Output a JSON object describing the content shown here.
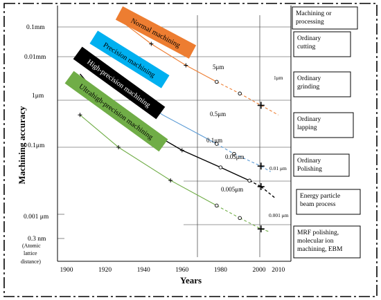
{
  "chart_data": {
    "type": "line",
    "xlabel": "Years",
    "ylabel": "Machining accuracy",
    "x_ticks": [
      "1900",
      "1920",
      "1940",
      "1960",
      "1980",
      "2000",
      "2010"
    ],
    "y_ticks": [
      "0.1mm",
      "0.01mm",
      "1μm",
      "0.1μm",
      "0.001 μm",
      "0.3 nm",
      "(Atomic",
      "lattice",
      "distance)"
    ],
    "series": [
      {
        "name": "Normal machining",
        "color": "#ed7d31",
        "solid_until": 1978,
        "points": [
          [
            1930,
            0.12
          ],
          [
            1944,
            0.042
          ],
          [
            1962,
            0.014
          ],
          [
            1978,
            0.006
          ],
          [
            1990,
            0.0033
          ],
          [
            2001,
            0.0018
          ],
          [
            2010,
            0.0011
          ]
        ]
      },
      {
        "name": "Precision machining",
        "color": "#5b9bd5",
        "solid_until": 1978,
        "points": [
          [
            1910,
            0.03
          ],
          [
            1930,
            0.0041
          ],
          [
            1950,
            0.0011
          ],
          [
            1965,
            0.0005
          ],
          [
            1978,
            0.00025
          ],
          [
            1987,
            0.00015
          ],
          [
            2001,
            8e-05
          ],
          [
            2006,
            6e-05
          ]
        ]
      },
      {
        "name": "High-precision machining",
        "color": "#000000",
        "solid_until": 1995,
        "points": [
          [
            1907,
            0.009
          ],
          [
            1916,
            0.0032
          ],
          [
            1932,
            0.00088
          ],
          [
            1950,
            0.00032
          ],
          [
            1960,
            0.00018
          ],
          [
            1980,
            7.5e-05
          ],
          [
            1995,
            3.8e-05
          ],
          [
            2001,
            2.8e-05
          ],
          [
            2008,
            1.6e-05
          ]
        ]
      },
      {
        "name": "Ultrahigh-precision machining",
        "color": "#70ad47",
        "solid_until": 1978,
        "points": [
          [
            1907,
            0.0011
          ],
          [
            1927,
            0.00021
          ],
          [
            1954,
            3.85e-05
          ],
          [
            1978,
            1.06e-05
          ],
          [
            1990,
            5.6e-06
          ],
          [
            2001,
            3.2e-06
          ],
          [
            2005,
            2.8e-06
          ]
        ]
      }
    ],
    "plus_markers": [
      [
        1944,
        0.042
      ],
      [
        1962,
        0.014
      ],
      [
        2001,
        0.0018
      ],
      [
        1916,
        0.0032
      ],
      [
        1932,
        0.00088
      ],
      [
        1960,
        0.00018
      ],
      [
        2001,
        8e-05
      ],
      [
        2001,
        2.8e-05
      ],
      [
        1907,
        0.0011
      ],
      [
        1927,
        0.00021
      ],
      [
        1954,
        3.85e-05
      ],
      [
        2001,
        3.2e-06
      ]
    ],
    "circle_markers": [
      [
        1978,
        0.006
      ],
      [
        1990,
        0.0033
      ],
      [
        1978,
        0.00025
      ],
      [
        1987,
        0.00015
      ],
      [
        1980,
        7.5e-05
      ],
      [
        1995,
        3.8e-05
      ],
      [
        1978,
        1.06e-05
      ],
      [
        1990,
        5.6e-06
      ]
    ],
    "annotations": [
      "5μm",
      "1μm",
      "0.5μm",
      "0.1μm",
      "0.05μm",
      "0.01 μm",
      "0.005μm",
      "0.001 μm"
    ],
    "processes": [
      "Machining or processing",
      "Ordinary cutting",
      "Ordinary grinding",
      "Ordinary lapping",
      "Ordinary Polishing",
      "Energy particle beam process",
      "MRF polishing, molecular ion machining, EBM"
    ]
  }
}
